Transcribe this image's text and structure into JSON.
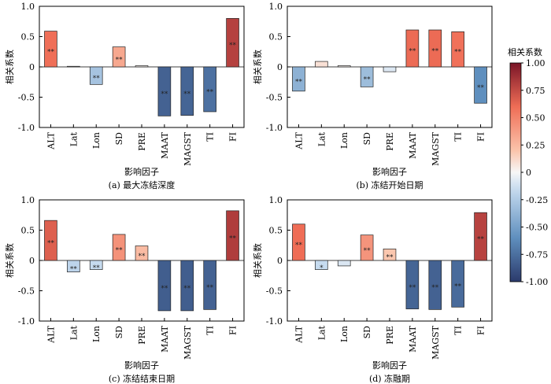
{
  "chart_data": [
    {
      "type": "bar",
      "caption": "(a) 最大冻结深度",
      "xlabel": "影响因子",
      "ylabel": "相关系数",
      "ylim": [
        -1.0,
        1.0
      ],
      "yticks": [
        "1.0",
        "0.5",
        "0",
        "-0.5",
        "-1.0"
      ],
      "categories": [
        "ALT",
        "Lat",
        "Lon",
        "SD",
        "PRE",
        "MAAT",
        "MAGST",
        "TI",
        "FI"
      ],
      "values": [
        0.59,
        0.01,
        -0.29,
        0.33,
        0.02,
        -0.81,
        -0.8,
        -0.74,
        0.8
      ],
      "significance": [
        "**",
        "",
        "**",
        "**",
        "",
        "**",
        "**",
        "**",
        "**"
      ]
    },
    {
      "type": "bar",
      "caption": "(b) 冻结开始日期",
      "xlabel": "影响因子",
      "ylabel": "相关系数",
      "ylim": [
        -1.0,
        1.0
      ],
      "yticks": [
        "1.0",
        "0.5",
        "0",
        "-0.5",
        "-1.0"
      ],
      "categories": [
        "ALT",
        "Lat",
        "Lon",
        "SD",
        "PRE",
        "MAAT",
        "MAGST",
        "TI",
        "FI"
      ],
      "values": [
        -0.4,
        0.09,
        0.02,
        -0.33,
        -0.08,
        0.61,
        0.61,
        0.58,
        -0.6
      ],
      "significance": [
        "**",
        "",
        "",
        "**",
        "",
        "**",
        "**",
        "**",
        "**"
      ]
    },
    {
      "type": "bar",
      "caption": "(c) 冻结结束日期",
      "xlabel": "影响因子",
      "ylabel": "相关系数",
      "ylim": [
        -1.0,
        1.0
      ],
      "yticks": [
        "1.0",
        "0.5",
        "0",
        "-0.5",
        "-1.0"
      ],
      "categories": [
        "ALT",
        "Lat",
        "Lon",
        "SD",
        "PRE",
        "MAAT",
        "MAGST",
        "TI",
        "FI"
      ],
      "values": [
        0.66,
        -0.19,
        -0.15,
        0.43,
        0.24,
        -0.83,
        -0.83,
        -0.81,
        0.82
      ],
      "significance": [
        "**",
        "**",
        "**",
        "**",
        "**",
        "**",
        "**",
        "**",
        "**"
      ]
    },
    {
      "type": "bar",
      "caption": "(d) 冻融期",
      "xlabel": "影响因子",
      "ylabel": "相关系数",
      "ylim": [
        -1.0,
        1.0
      ],
      "yticks": [
        "1.0",
        "0.5",
        "0",
        "-0.5",
        "-1.0"
      ],
      "categories": [
        "ALT",
        "Lat",
        "Lon",
        "SD",
        "PRE",
        "MAAT",
        "MAGST",
        "TI",
        "FI"
      ],
      "values": [
        0.6,
        -0.15,
        -0.09,
        0.42,
        0.19,
        -0.8,
        -0.81,
        -0.77,
        0.79
      ],
      "significance": [
        "**",
        "*",
        "",
        "**",
        "**",
        "**",
        "**",
        "**",
        "**"
      ]
    }
  ],
  "colorbar": {
    "title": "相关系数",
    "range": [
      -1.0,
      1.0
    ],
    "ticks": [
      "1.00",
      "0.75",
      "0.50",
      "0.25",
      "0",
      "-0.25",
      "-0.50",
      "-0.75",
      "-1.00"
    ],
    "colors": {
      "neg_strong": "#2b3a6b",
      "neg_mid": "#5f8fbe",
      "neg_light": "#c6dbef",
      "zero": "#f7f7f7",
      "pos_light": "#fbc4ab",
      "pos_mid": "#ef6d56",
      "pos_strong": "#7a1527"
    }
  }
}
